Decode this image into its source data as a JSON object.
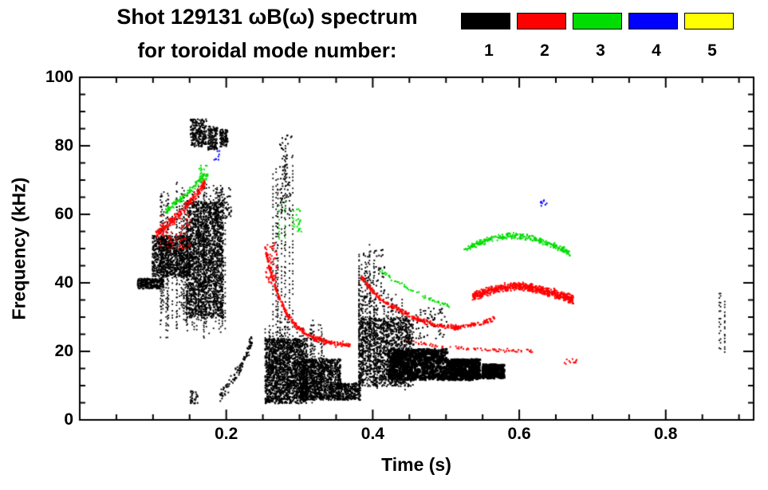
{
  "chart_data": {
    "type": "scatter",
    "title": "Shot 129131 ωB(ω) spectrum",
    "subtitle": "for toroidal mode number:",
    "xlabel": "Time (s)",
    "ylabel": "Frequency (kHz)",
    "units": {
      "x": "s",
      "y": "kHz"
    },
    "xlim": [
      0,
      0.92
    ],
    "ylim": [
      0,
      100
    ],
    "x_major_ticks": [
      0.2,
      0.4,
      0.6,
      0.8
    ],
    "x_tick_labels": [
      "0.2",
      "0.4",
      "0.6",
      "0.8"
    ],
    "x_minor_step": 0.05,
    "y_major_ticks": [
      0,
      20,
      40,
      60,
      80,
      100
    ],
    "y_tick_labels": [
      "0",
      "20",
      "40",
      "60",
      "80",
      "100"
    ],
    "y_minor_step": 5,
    "legend_position": "top-right",
    "grid": false,
    "legend": [
      {
        "label": "1",
        "color": "#000000"
      },
      {
        "label": "2",
        "color": "#ff0000"
      },
      {
        "label": "3",
        "color": "#00dd00"
      },
      {
        "label": "4",
        "color": "#0000ff"
      },
      {
        "label": "5",
        "color": "#ffff00"
      }
    ],
    "series": [
      {
        "name": "1",
        "toroidal_mode_number": 1,
        "color": "#000000",
        "clusters": [
          {
            "type": "band",
            "t": [
              0.078,
              0.113
            ],
            "f": [
              38.5,
              41.5
            ],
            "n": 260,
            "size": 2
          },
          {
            "type": "band",
            "t": [
              0.098,
              0.15
            ],
            "f": [
              42,
              54
            ],
            "n": 900,
            "size": 2
          },
          {
            "type": "band",
            "t": [
              0.145,
              0.195
            ],
            "f": [
              30,
              64
            ],
            "n": 1600,
            "size": 2
          },
          {
            "type": "vstreaks",
            "t": [
              0.108,
              0.2
            ],
            "f": [
              24,
              70
            ],
            "count": 55
          },
          {
            "type": "band",
            "t": [
              0.15,
              0.172
            ],
            "f": [
              80,
              88
            ],
            "n": 220,
            "size": 2
          },
          {
            "type": "band",
            "t": [
              0.174,
              0.187
            ],
            "f": [
              79,
              86
            ],
            "n": 130,
            "size": 2
          },
          {
            "type": "band",
            "t": [
              0.19,
              0.201
            ],
            "f": [
              80,
              85
            ],
            "n": 90,
            "size": 2
          },
          {
            "type": "band",
            "t": [
              0.183,
              0.206
            ],
            "f": [
              59,
              68
            ],
            "n": 60,
            "size": 2
          },
          {
            "type": "band",
            "t": [
              0.15,
              0.16
            ],
            "f": [
              5,
              9
            ],
            "n": 30,
            "size": 2
          },
          {
            "type": "curve",
            "pts": [
              [
                0.19,
                7
              ],
              [
                0.205,
                11
              ],
              [
                0.22,
                16
              ],
              [
                0.235,
                24
              ]
            ],
            "jitter": 2.2,
            "n": 110,
            "size": 2
          },
          {
            "type": "vstreaks",
            "t": [
              0.258,
              0.29
            ],
            "f": [
              6,
              87
            ],
            "count": 9
          },
          {
            "type": "band",
            "t": [
              0.272,
              0.29
            ],
            "f": [
              60,
              84
            ],
            "n": 70,
            "size": 2
          },
          {
            "type": "band",
            "t": [
              0.252,
              0.31
            ],
            "f": [
              5,
              24
            ],
            "n": 1500,
            "size": 2
          },
          {
            "type": "band",
            "t": [
              0.3,
              0.355
            ],
            "f": [
              6,
              18
            ],
            "n": 1100,
            "size": 2
          },
          {
            "type": "vstreaks",
            "t": [
              0.252,
              0.335
            ],
            "f": [
              5,
              30
            ],
            "count": 40
          },
          {
            "type": "band",
            "t": [
              0.35,
              0.382
            ],
            "f": [
              6,
              11
            ],
            "n": 280,
            "size": 2
          },
          {
            "type": "vstreaks",
            "t": [
              0.378,
              0.405
            ],
            "f": [
              8,
              52
            ],
            "count": 12
          },
          {
            "type": "band",
            "t": [
              0.38,
              0.455
            ],
            "f": [
              10,
              30
            ],
            "n": 1200,
            "size": 2
          },
          {
            "type": "vstreaks",
            "t": [
              0.38,
              0.445
            ],
            "f": [
              9,
              38
            ],
            "count": 28
          },
          {
            "type": "band",
            "t": [
              0.383,
              0.415
            ],
            "f": [
              32,
              50
            ],
            "n": 90,
            "size": 2
          },
          {
            "type": "band",
            "t": [
              0.42,
              0.5
            ],
            "f": [
              12,
              21
            ],
            "n": 800,
            "size": 3
          },
          {
            "type": "band",
            "t": [
              0.5,
              0.545
            ],
            "f": [
              12,
              18
            ],
            "n": 520,
            "size": 3
          },
          {
            "type": "band",
            "t": [
              0.548,
              0.578
            ],
            "f": [
              12.5,
              16.5
            ],
            "n": 300,
            "size": 3
          },
          {
            "type": "band",
            "t": [
              0.458,
              0.5
            ],
            "f": [
              24,
              33
            ],
            "n": 60,
            "size": 2
          },
          {
            "type": "vstreaks",
            "t": [
              0.872,
              0.884
            ],
            "f": [
              20,
              40
            ],
            "count": 4
          }
        ]
      },
      {
        "name": "2",
        "toroidal_mode_number": 2,
        "color": "#ff0000",
        "clusters": [
          {
            "type": "curve",
            "pts": [
              [
                0.103,
                54
              ],
              [
                0.12,
                57.5
              ],
              [
                0.135,
                60.5
              ],
              [
                0.15,
                64
              ],
              [
                0.162,
                67
              ],
              [
                0.17,
                69.5
              ]
            ],
            "jitter": 1.6,
            "n": 200,
            "size": 2
          },
          {
            "type": "band",
            "t": [
              0.108,
              0.15
            ],
            "f": [
              50,
              60
            ],
            "n": 70,
            "size": 2
          },
          {
            "type": "curve",
            "pts": [
              [
                0.252,
                50
              ],
              [
                0.26,
                43
              ],
              [
                0.27,
                36.5
              ],
              [
                0.282,
                31
              ],
              [
                0.295,
                27.5
              ],
              [
                0.31,
                25
              ],
              [
                0.33,
                23.2
              ],
              [
                0.35,
                22.3
              ],
              [
                0.368,
                22
              ]
            ],
            "jitter": 1.0,
            "n": 300,
            "size": 2
          },
          {
            "type": "band",
            "t": [
              0.253,
              0.268
            ],
            "f": [
              40,
              52
            ],
            "n": 60,
            "size": 2
          },
          {
            "type": "curve",
            "pts": [
              [
                0.383,
                42
              ],
              [
                0.395,
                38.5
              ],
              [
                0.41,
                35.5
              ],
              [
                0.428,
                33
              ],
              [
                0.448,
                30.8
              ],
              [
                0.468,
                29
              ],
              [
                0.488,
                27.8
              ],
              [
                0.508,
                27.2
              ],
              [
                0.528,
                27.6
              ],
              [
                0.548,
                28.6
              ],
              [
                0.565,
                29.8
              ]
            ],
            "jitter": 0.9,
            "n": 330,
            "size": 2
          },
          {
            "type": "curve",
            "pts": [
              [
                0.535,
                36.3
              ],
              [
                0.552,
                37.5
              ],
              [
                0.57,
                38.6
              ],
              [
                0.59,
                39.2
              ],
              [
                0.61,
                39.1
              ],
              [
                0.628,
                38.2
              ],
              [
                0.645,
                37.2
              ],
              [
                0.66,
                36.2
              ],
              [
                0.673,
                35.4
              ]
            ],
            "jitter": 1.5,
            "n": 700,
            "size": 2
          },
          {
            "type": "curve",
            "pts": [
              [
                0.445,
                23.2
              ],
              [
                0.475,
                22.2
              ],
              [
                0.505,
                21.5
              ],
              [
                0.535,
                21.0
              ],
              [
                0.565,
                20.7
              ],
              [
                0.595,
                20.4
              ],
              [
                0.62,
                20.2
              ]
            ],
            "jitter": 0.55,
            "n": 80,
            "size": 2
          },
          {
            "type": "band",
            "t": [
              0.66,
              0.68
            ],
            "f": [
              16.5,
              18
            ],
            "n": 12,
            "size": 2
          }
        ]
      },
      {
        "name": "3",
        "toroidal_mode_number": 3,
        "color": "#00dd00",
        "clusters": [
          {
            "type": "curve",
            "pts": [
              [
                0.116,
                61
              ],
              [
                0.13,
                63.5
              ],
              [
                0.144,
                66
              ],
              [
                0.158,
                69
              ],
              [
                0.17,
                72
              ]
            ],
            "jitter": 1.3,
            "n": 110,
            "size": 2
          },
          {
            "type": "band",
            "t": [
              0.162,
              0.174
            ],
            "f": [
              70,
              74.5
            ],
            "n": 25,
            "size": 2
          },
          {
            "type": "vstreaks",
            "t": [
              0.27,
              0.282
            ],
            "f": [
              52,
              65
            ],
            "count": 3
          },
          {
            "type": "band",
            "t": [
              0.286,
              0.302
            ],
            "f": [
              55,
              62
            ],
            "n": 25,
            "size": 2
          },
          {
            "type": "curve",
            "pts": [
              [
                0.408,
                44
              ],
              [
                0.428,
                41
              ],
              [
                0.448,
                38.5
              ],
              [
                0.468,
                36.5
              ],
              [
                0.488,
                34.5
              ],
              [
                0.505,
                33.2
              ]
            ],
            "jitter": 0.8,
            "n": 55,
            "size": 2
          },
          {
            "type": "curve",
            "pts": [
              [
                0.523,
                50
              ],
              [
                0.542,
                51.8
              ],
              [
                0.56,
                53
              ],
              [
                0.58,
                54
              ],
              [
                0.6,
                53.8
              ],
              [
                0.62,
                53
              ],
              [
                0.638,
                51.8
              ],
              [
                0.655,
                50.3
              ],
              [
                0.668,
                48.8
              ]
            ],
            "jitter": 1.0,
            "n": 300,
            "size": 2
          }
        ]
      },
      {
        "name": "4",
        "toroidal_mode_number": 4,
        "color": "#0000ff",
        "clusters": [
          {
            "type": "band",
            "t": [
              0.182,
              0.19
            ],
            "f": [
              76,
              79
            ],
            "n": 8,
            "size": 2
          },
          {
            "type": "band",
            "t": [
              0.628,
              0.638
            ],
            "f": [
              62.5,
              64.5
            ],
            "n": 8,
            "size": 2
          }
        ]
      },
      {
        "name": "5",
        "toroidal_mode_number": 5,
        "color": "#ffff00",
        "clusters": []
      }
    ]
  }
}
